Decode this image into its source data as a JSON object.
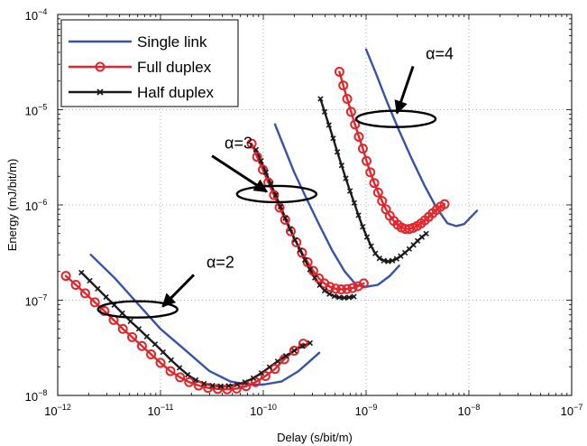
{
  "chart_data": {
    "type": "line",
    "xscale": "log",
    "yscale": "log",
    "xlim": [
      1e-12,
      1e-07
    ],
    "ylim": [
      1e-08,
      0.0001
    ],
    "xlabel": "Delay (s/bit/m)",
    "ylabel": "Energy (mJ/bit/m)",
    "grid": true,
    "legend_position": "top-left",
    "x_ticks": [
      {
        "base": "10",
        "exp": "−12"
      },
      {
        "base": "10",
        "exp": "−11"
      },
      {
        "base": "10",
        "exp": "−10"
      },
      {
        "base": "10",
        "exp": "−9"
      },
      {
        "base": "10",
        "exp": "−8"
      },
      {
        "base": "10",
        "exp": "−7"
      }
    ],
    "y_ticks": [
      {
        "base": "10",
        "exp": "−8"
      },
      {
        "base": "10",
        "exp": "−7"
      },
      {
        "base": "10",
        "exp": "−6"
      },
      {
        "base": "10",
        "exp": "−5"
      },
      {
        "base": "10",
        "exp": "−4"
      }
    ],
    "series": [
      {
        "name": "Single link",
        "color": "#3953a4",
        "marker": "none",
        "curves": [
          [
            [
              2.1e-12,
              3e-07
            ],
            [
              3.6e-12,
              1.7e-07
            ],
            [
              6e-12,
              9.2e-08
            ],
            [
              1e-11,
              5e-08
            ],
            [
              1.8e-11,
              2.9e-08
            ],
            [
              3e-11,
              1.8e-08
            ],
            [
              4.8e-11,
              1.4e-08
            ],
            [
              7e-11,
              1.3e-08
            ],
            [
              1e-10,
              1.3e-08
            ],
            [
              1.5e-10,
              1.4e-08
            ],
            [
              2.2e-10,
              1.8e-08
            ],
            [
              3.5e-10,
              2.8e-08
            ]
          ],
          [
            [
              1.3e-10,
              7e-06
            ],
            [
              1.6e-10,
              4e-06
            ],
            [
              2e-10,
              2.2e-06
            ],
            [
              2.6e-10,
              1.2e-06
            ],
            [
              3.5e-10,
              6.2e-07
            ],
            [
              4.7e-10,
              3.3e-07
            ],
            [
              6.2e-10,
              2e-07
            ],
            [
              8e-10,
              1.45e-07
            ],
            [
              1e-09,
              1.38e-07
            ],
            [
              1.3e-09,
              1.45e-07
            ],
            [
              1.7e-09,
              1.8e-07
            ],
            [
              2.1e-09,
              2.3e-07
            ]
          ],
          [
            [
              1e-09,
              4.3e-05
            ],
            [
              1.25e-09,
              2.4e-05
            ],
            [
              1.6e-09,
              1.2e-05
            ],
            [
              2.1e-09,
              6e-06
            ],
            [
              2.8e-09,
              3e-06
            ],
            [
              3.7e-09,
              1.6e-06
            ],
            [
              4.8e-09,
              9.5e-07
            ],
            [
              6.2e-09,
              6.4e-07
            ],
            [
              7.5e-09,
              6e-07
            ],
            [
              9e-09,
              6.3e-07
            ],
            [
              1.05e-08,
              7.5e-07
            ],
            [
              1.2e-08,
              8.7e-07
            ]
          ]
        ]
      },
      {
        "name": "Full duplex",
        "color": "#e2262b",
        "marker": "circle",
        "curves": [
          [
            [
              1.2e-12,
              1.8e-07
            ],
            [
              1.5e-12,
              1.45e-07
            ],
            [
              1.85e-12,
              1.18e-07
            ],
            [
              2.3e-12,
              9.5e-08
            ],
            [
              2.85e-12,
              7.7e-08
            ],
            [
              3.5e-12,
              6.2e-08
            ],
            [
              4.3e-12,
              5e-08
            ],
            [
              5.3e-12,
              4.1e-08
            ],
            [
              6.6e-12,
              3.3e-08
            ],
            [
              8.1e-12,
              2.7e-08
            ],
            [
              1e-11,
              2.2e-08
            ],
            [
              1.25e-11,
              1.8e-08
            ],
            [
              1.55e-11,
              1.55e-08
            ],
            [
              1.9e-11,
              1.38e-08
            ],
            [
              2.35e-11,
              1.27e-08
            ],
            [
              2.9e-11,
              1.2e-08
            ],
            [
              3.6e-11,
              1.17e-08
            ],
            [
              4.45e-11,
              1.16e-08
            ],
            [
              5.5e-11,
              1.18e-08
            ],
            [
              6.8e-11,
              1.25e-08
            ],
            [
              8.4e-11,
              1.38e-08
            ],
            [
              1.05e-10,
              1.6e-08
            ],
            [
              1.3e-10,
              1.9e-08
            ],
            [
              1.6e-10,
              2.4e-08
            ],
            [
              2e-10,
              2.95e-08
            ],
            [
              2.45e-10,
              3.5e-08
            ]
          ],
          [
            [
              7.7e-11,
              4.4e-06
            ],
            [
              8.7e-11,
              3.2e-06
            ],
            [
              9.9e-11,
              2.35e-06
            ],
            [
              1.12e-10,
              1.72e-06
            ],
            [
              1.27e-10,
              1.27e-06
            ],
            [
              1.44e-10,
              9.4e-07
            ],
            [
              1.63e-10,
              7e-07
            ],
            [
              1.85e-10,
              5.3e-07
            ],
            [
              2.1e-10,
              4.05e-07
            ],
            [
              2.38e-10,
              3.15e-07
            ],
            [
              2.7e-10,
              2.5e-07
            ],
            [
              3.06e-10,
              2.03e-07
            ],
            [
              3.47e-10,
              1.7e-07
            ],
            [
              3.93e-10,
              1.5e-07
            ],
            [
              4.46e-10,
              1.38e-07
            ],
            [
              5.06e-10,
              1.32e-07
            ],
            [
              5.74e-10,
              1.3e-07
            ],
            [
              6.5e-10,
              1.31e-07
            ],
            [
              7.37e-10,
              1.34e-07
            ],
            [
              8.36e-10,
              1.4e-07
            ],
            [
              9.48e-10,
              1.5e-07
            ]
          ],
          [
            [
              5.5e-10,
              2.5e-05
            ],
            [
              6e-10,
              1.8e-05
            ],
            [
              6.55e-10,
              1.3e-05
            ],
            [
              7.15e-10,
              9.5e-06
            ],
            [
              7.8e-10,
              7e-06
            ],
            [
              8.5e-10,
              5.2e-06
            ],
            [
              9.3e-10,
              3.9e-06
            ],
            [
              1.01e-09,
              2.9e-06
            ],
            [
              1.1e-09,
              2.2e-06
            ],
            [
              1.2e-09,
              1.7e-06
            ],
            [
              1.31e-09,
              1.35e-06
            ],
            [
              1.43e-09,
              1.1e-06
            ],
            [
              1.56e-09,
              9e-07
            ],
            [
              1.7e-09,
              7.7e-07
            ],
            [
              1.86e-09,
              6.8e-07
            ],
            [
              2.03e-09,
              6.2e-07
            ],
            [
              2.21e-09,
              5.8e-07
            ],
            [
              2.41e-09,
              5.6e-07
            ],
            [
              2.63e-09,
              5.6e-07
            ],
            [
              2.87e-09,
              5.75e-07
            ],
            [
              3.13e-09,
              6e-07
            ],
            [
              3.42e-09,
              6.4e-07
            ],
            [
              3.73e-09,
              6.9e-07
            ],
            [
              4.07e-09,
              7.5e-07
            ],
            [
              4.44e-09,
              8.2e-07
            ],
            [
              4.85e-09,
              8.9e-07
            ],
            [
              5.3e-09,
              9.6e-07
            ],
            [
              5.8e-09,
              1.02e-06
            ]
          ]
        ]
      },
      {
        "name": "Half duplex",
        "color": "#1a1a1a",
        "marker": "x",
        "curves": [
          [
            [
              1.7e-12,
              1.95e-07
            ],
            [
              2.05e-12,
              1.6e-07
            ],
            [
              2.45e-12,
              1.32e-07
            ],
            [
              2.95e-12,
              1.08e-07
            ],
            [
              3.55e-12,
              8.9e-08
            ],
            [
              4.25e-12,
              7.3e-08
            ],
            [
              5.1e-12,
              6e-08
            ],
            [
              6.15e-12,
              5e-08
            ],
            [
              7.35e-12,
              4.15e-08
            ],
            [
              8.85e-12,
              3.45e-08
            ],
            [
              1.06e-11,
              2.85e-08
            ],
            [
              1.27e-11,
              2.35e-08
            ],
            [
              1.53e-11,
              1.95e-08
            ],
            [
              1.84e-11,
              1.65e-08
            ],
            [
              2.2e-11,
              1.45e-08
            ],
            [
              2.65e-11,
              1.33e-08
            ],
            [
              3.2e-11,
              1.27e-08
            ],
            [
              3.85e-11,
              1.25e-08
            ],
            [
              4.6e-11,
              1.26e-08
            ],
            [
              5.55e-11,
              1.3e-08
            ],
            [
              6.65e-11,
              1.38e-08
            ],
            [
              8e-11,
              1.52e-08
            ],
            [
              9.6e-11,
              1.72e-08
            ],
            [
              1.15e-10,
              1.98e-08
            ],
            [
              1.38e-10,
              2.28e-08
            ],
            [
              1.66e-10,
              2.6e-08
            ],
            [
              2e-10,
              2.95e-08
            ],
            [
              2.4e-10,
              3.3e-08
            ],
            [
              2.85e-10,
              3.55e-08
            ]
          ],
          [
            [
              8.5e-11,
              3.8e-06
            ],
            [
              9.5e-11,
              2.9e-06
            ],
            [
              1.06e-10,
              2.2e-06
            ],
            [
              1.18e-10,
              1.67e-06
            ],
            [
              1.32e-10,
              1.27e-06
            ],
            [
              1.47e-10,
              9.6e-07
            ],
            [
              1.64e-10,
              7.3e-07
            ],
            [
              1.83e-10,
              5.6e-07
            ],
            [
              2.04e-10,
              4.3e-07
            ],
            [
              2.28e-10,
              3.35e-07
            ],
            [
              2.54e-10,
              2.65e-07
            ],
            [
              2.84e-10,
              2.1e-07
            ],
            [
              3.17e-10,
              1.72e-07
            ],
            [
              3.54e-10,
              1.44e-07
            ],
            [
              3.95e-10,
              1.26e-07
            ],
            [
              4.4e-10,
              1.16e-07
            ],
            [
              4.91e-10,
              1.1e-07
            ],
            [
              5.48e-10,
              1.07e-07
            ],
            [
              6.12e-10,
              1.06e-07
            ],
            [
              6.83e-10,
              1.07e-07
            ],
            [
              7.62e-10,
              1.09e-07
            ]
          ],
          [
            [
              3.6e-10,
              1.3e-05
            ],
            [
              3.95e-10,
              9.5e-06
            ],
            [
              4.35e-10,
              6.9e-06
            ],
            [
              4.78e-10,
              5e-06
            ],
            [
              5.25e-10,
              3.6e-06
            ],
            [
              5.78e-10,
              2.6e-06
            ],
            [
              6.35e-10,
              1.9e-06
            ],
            [
              6.98e-10,
              1.4e-06
            ],
            [
              7.67e-10,
              1.05e-06
            ],
            [
              8.43e-10,
              7.8e-07
            ],
            [
              9.27e-10,
              5.9e-07
            ],
            [
              1.02e-09,
              4.6e-07
            ],
            [
              1.12e-09,
              3.7e-07
            ],
            [
              1.23e-09,
              3.1e-07
            ],
            [
              1.35e-09,
              2.75e-07
            ],
            [
              1.49e-09,
              2.6e-07
            ],
            [
              1.64e-09,
              2.55e-07
            ],
            [
              1.8e-09,
              2.6e-07
            ],
            [
              1.98e-09,
              2.72e-07
            ],
            [
              2.17e-09,
              2.9e-07
            ],
            [
              2.39e-09,
              3.15e-07
            ],
            [
              2.63e-09,
              3.45e-07
            ],
            [
              2.89e-09,
              3.8e-07
            ],
            [
              3.17e-09,
              4.2e-07
            ],
            [
              3.49e-09,
              4.6e-07
            ],
            [
              3.84e-09,
              5e-07
            ]
          ]
        ]
      }
    ],
    "annotations": [
      {
        "label": "α=2",
        "ellipse": {
          "cx": 6e-12,
          "cy": 8e-08
        },
        "text_at": [
          2.8e-11,
          2.2e-07
        ],
        "arrow_to": [
          1.05e-11,
          8.6e-08
        ]
      },
      {
        "label": "α=3",
        "ellipse": {
          "cx": 1.35e-10,
          "cy": 1.3e-06
        },
        "text_at": [
          4.2e-11,
          3.9e-06
        ],
        "arrow_to": [
          1.08e-10,
          1.38e-06
        ]
      },
      {
        "label": "α=4",
        "ellipse": {
          "cx": 1.95e-09,
          "cy": 8e-06
        },
        "text_at": [
          3.8e-09,
          3.4e-05
        ],
        "arrow_to": [
          2e-09,
          9.2e-06
        ]
      }
    ]
  }
}
